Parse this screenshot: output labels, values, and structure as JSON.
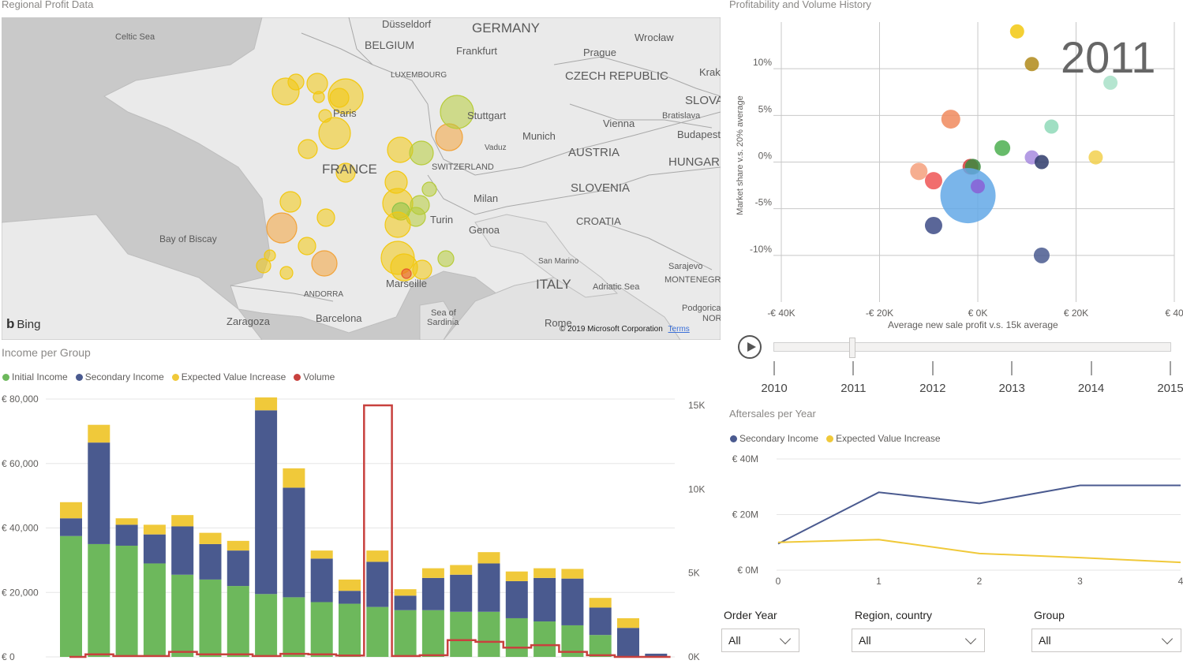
{
  "map": {
    "title": "Regional Profit Data",
    "attribution": "© 2019 Microsoft Corporation",
    "terms": "Terms",
    "bing": "Bing",
    "labels": [
      {
        "t": "Celtic Sea",
        "s": 11
      },
      {
        "t": "Düsseldorf",
        "s": 13
      },
      {
        "t": "GERMANY",
        "s": 17
      },
      {
        "t": "BELGIUM",
        "s": 14
      },
      {
        "t": "Frankfurt",
        "s": 13
      },
      {
        "t": "Wrocław",
        "s": 13
      },
      {
        "t": "Prague",
        "s": 13
      },
      {
        "t": "LUXEMBOURG",
        "s": 10
      },
      {
        "t": "CZECH REPUBLIC",
        "s": 15
      },
      {
        "t": "Krak",
        "s": 13
      },
      {
        "t": "SLOVA",
        "s": 15
      },
      {
        "t": "Paris",
        "s": 13
      },
      {
        "t": "Stuttgart",
        "s": 13
      },
      {
        "t": "Vienna",
        "s": 13
      },
      {
        "t": "Bratislava",
        "s": 11
      },
      {
        "t": "Munich",
        "s": 13
      },
      {
        "t": "Budapest",
        "s": 13
      },
      {
        "t": "Vaduz",
        "s": 10
      },
      {
        "t": "AUSTRIA",
        "s": 15
      },
      {
        "t": "FRANCE",
        "s": 17
      },
      {
        "t": "SWITZERLAND",
        "s": 11
      },
      {
        "t": "HUNGAR",
        "s": 15
      },
      {
        "t": "SLOVENIA",
        "s": 15
      },
      {
        "t": "Milan",
        "s": 13
      },
      {
        "t": "CROATIA",
        "s": 13
      },
      {
        "t": "Turin",
        "s": 13
      },
      {
        "t": "Genoa",
        "s": 13
      },
      {
        "t": "Bay of Biscay",
        "s": 12
      },
      {
        "t": "San Marino",
        "s": 10
      },
      {
        "t": "Sarajevo",
        "s": 11
      },
      {
        "t": "MONTENEGRO",
        "s": 11
      },
      {
        "t": "ITALY",
        "s": 17
      },
      {
        "t": "Adriatic Sea",
        "s": 11
      },
      {
        "t": "Marseille",
        "s": 13
      },
      {
        "t": "ANDORRA",
        "s": 10
      },
      {
        "t": "Podgorica",
        "s": 11
      },
      {
        "t": "NOR",
        "s": 11
      },
      {
        "t": "Zaragoza",
        "s": 13
      },
      {
        "t": "Barcelona",
        "s": 13
      },
      {
        "t": "Sea of",
        "s": 11
      },
      {
        "t": "Sardinia",
        "s": 11
      },
      {
        "t": "Rome",
        "s": 13
      }
    ],
    "bubble_colors": [
      "#f2c811",
      "#b7cc3a",
      "#f2a33a",
      "#8bc34a",
      "#e8552e"
    ]
  },
  "scatter": {
    "title": "Profitability and Volume History",
    "year_label": "2011",
    "xlabel": "Average new sale profit v.s. 15k average",
    "ylabel": "Market share v.s. 20% average",
    "xticks": [
      "-€ 40K",
      "-€ 20K",
      "€ 0K",
      "€ 20K",
      "€ 40"
    ],
    "yticks": [
      "10%",
      "5%",
      "0%",
      "-5%",
      "-10%"
    ],
    "play_axis": {
      "years": [
        "2010",
        "2011",
        "2012",
        "2013",
        "2014",
        "2015"
      ],
      "current": "2011"
    }
  },
  "income": {
    "title": "Income per Group",
    "legend": [
      {
        "name": "Initial Income",
        "color": "#6db85c"
      },
      {
        "name": "Secondary Income",
        "color": "#4a5a8f"
      },
      {
        "name": "Expected Value Increase",
        "color": "#f0c93a"
      },
      {
        "name": "Volume",
        "color": "#c8413e"
      }
    ],
    "yticks_left": [
      "€ 80,000",
      "€ 60,000",
      "€ 40,000",
      "€ 20,000",
      "€ 0"
    ],
    "yticks_right": [
      "15K",
      "10K",
      "5K",
      "0K"
    ]
  },
  "aftersales": {
    "title": "Aftersales per Year",
    "legend": [
      {
        "name": "Secondary Income",
        "color": "#4a5a8f"
      },
      {
        "name": "Expected Value Increase",
        "color": "#f0c93a"
      }
    ],
    "yticks": [
      "€ 40M",
      "€ 20M",
      "€ 0M"
    ],
    "xticks": [
      "0",
      "1",
      "2",
      "3",
      "4"
    ]
  },
  "chart_data": [
    {
      "type": "bar",
      "title": "Income per Group",
      "ylim": [
        0,
        80000
      ],
      "y2lim": [
        0,
        15000
      ],
      "series": [
        {
          "name": "Initial Income",
          "values": [
            37500,
            35000,
            34500,
            29000,
            25500,
            24000,
            22000,
            19500,
            18500,
            17000,
            16500,
            15500,
            14500,
            14500,
            14000,
            14000,
            12000,
            11000,
            9800,
            6800,
            0,
            0
          ]
        },
        {
          "name": "Secondary Income",
          "values": [
            5500,
            31500,
            6500,
            9000,
            15000,
            11000,
            11000,
            57000,
            34000,
            13500,
            4000,
            14000,
            4500,
            10000,
            11500,
            15000,
            11500,
            13500,
            14500,
            8500,
            9000,
            1000
          ]
        },
        {
          "name": "Expected Value Increase",
          "values": [
            5000,
            5500,
            2000,
            3000,
            3500,
            3500,
            3000,
            4000,
            6000,
            2500,
            3500,
            3500,
            2000,
            3000,
            3000,
            3500,
            3000,
            3000,
            3000,
            3000,
            3000,
            0
          ]
        },
        {
          "name": "Volume",
          "values": [
            0,
            150,
            50,
            50,
            300,
            150,
            150,
            50,
            180,
            150,
            80,
            15000,
            50,
            100,
            1000,
            900,
            550,
            700,
            300,
            100,
            0,
            0
          ]
        }
      ]
    },
    {
      "type": "scatter",
      "title": "Profitability and Volume History",
      "xlabel": "Average new sale profit v.s. 15k average",
      "ylabel": "Market share v.s. 20% average",
      "xlim": [
        -40000,
        40000
      ],
      "ylim": [
        -15,
        15
      ],
      "points": [
        {
          "x": 8000,
          "y": 14,
          "r": 9,
          "color": "#f2c811"
        },
        {
          "x": 11000,
          "y": 10.5,
          "r": 9,
          "color": "#b08a1a"
        },
        {
          "x": 27000,
          "y": 8.5,
          "r": 9,
          "color": "#a8e0c8"
        },
        {
          "x": -5500,
          "y": 4.6,
          "r": 12,
          "color": "#f08a5d"
        },
        {
          "x": 15000,
          "y": 3.8,
          "r": 9,
          "color": "#8fd9b8"
        },
        {
          "x": 5000,
          "y": 1.5,
          "r": 10,
          "color": "#4caf50"
        },
        {
          "x": 11000,
          "y": 0.5,
          "r": 9,
          "color": "#a78bdf"
        },
        {
          "x": 24000,
          "y": 0.5,
          "r": 9,
          "color": "#f2d04e"
        },
        {
          "x": 13000,
          "y": 0,
          "r": 9,
          "color": "#2f3b6b"
        },
        {
          "x": -12000,
          "y": -1,
          "r": 11,
          "color": "#f4a07c"
        },
        {
          "x": -1500,
          "y": -0.5,
          "r": 10,
          "color": "#d63b3b"
        },
        {
          "x": -1000,
          "y": -0.5,
          "r": 10,
          "color": "#3c8a40"
        },
        {
          "x": -9000,
          "y": -2,
          "r": 11,
          "color": "#e55"
        },
        {
          "x": -2000,
          "y": -3.6,
          "r": 35,
          "color": "#63a8e6"
        },
        {
          "x": 0,
          "y": -2.6,
          "r": 9,
          "color": "#8a5fd6"
        },
        {
          "x": -9000,
          "y": -6.8,
          "r": 11,
          "color": "#3d4b86"
        },
        {
          "x": 13000,
          "y": -10,
          "r": 10,
          "color": "#4a5a8f"
        }
      ]
    },
    {
      "type": "line",
      "title": "Aftersales per Year",
      "x": [
        0,
        1,
        2,
        3,
        4
      ],
      "ylim": [
        0,
        40000000
      ],
      "series": [
        {
          "name": "Secondary Income",
          "values": [
            9500000,
            28000000,
            24000000,
            30500000,
            30500000
          ]
        },
        {
          "name": "Expected Value Increase",
          "values": [
            10000000,
            11000000,
            6000000,
            4500000,
            2800000
          ]
        }
      ]
    }
  ],
  "filters": [
    {
      "label": "Order Year",
      "value": "All"
    },
    {
      "label": "Region, country",
      "value": "All"
    },
    {
      "label": "Group",
      "value": "All"
    }
  ]
}
